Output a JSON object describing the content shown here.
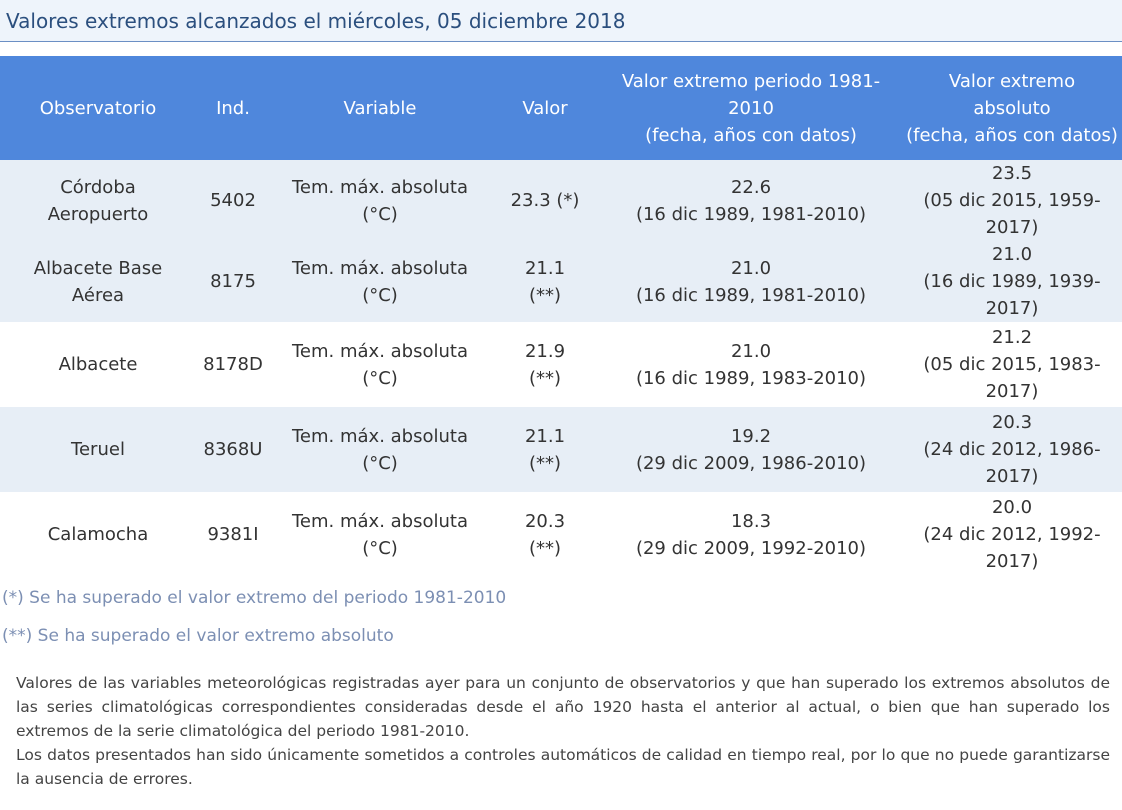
{
  "header": {
    "title": "Valores extremos alcanzados el miércoles, 05 diciembre 2018"
  },
  "table": {
    "columns": [
      "Observatorio",
      "Ind.",
      "Variable",
      "Valor",
      "Valor extremo periodo 1981-\n2010\n(fecha, años con datos)",
      "Valor extremo\nabsoluto\n(fecha, años con datos)"
    ],
    "rows": [
      {
        "station": "Córdoba\nAeropuerto",
        "ind": "5402",
        "variable": "Tem. máx. absoluta\n(°C)",
        "value": "23.3 (*)",
        "period_extreme": "22.6\n(16 dic 1989, 1981-2010)",
        "absolute_extreme": "23.5\n(05 dic 2015, 1959-\n2017)"
      },
      {
        "station": "Albacete Base\nAérea",
        "ind": "8175",
        "variable": "Tem. máx. absoluta\n(°C)",
        "value": "21.1\n(**)",
        "period_extreme": "21.0\n(16 dic 1989, 1981-2010)",
        "absolute_extreme": "21.0\n(16 dic 1989, 1939-\n2017)"
      },
      {
        "station": "Albacete",
        "ind": "8178D",
        "variable": "Tem. máx. absoluta\n(°C)",
        "value": "21.9\n(**)",
        "period_extreme": "21.0\n(16 dic 1989, 1983-2010)",
        "absolute_extreme": "21.2\n(05 dic 2015, 1983-\n2017)"
      },
      {
        "station": "Teruel",
        "ind": "8368U",
        "variable": "Tem. máx. absoluta\n(°C)",
        "value": "21.1\n(**)",
        "period_extreme": "19.2\n(29 dic 2009, 1986-2010)",
        "absolute_extreme": "20.3\n(24 dic 2012, 1986-\n2017)"
      },
      {
        "station": "Calamocha",
        "ind": "9381I",
        "variable": "Tem. máx. absoluta\n(°C)",
        "value": "20.3\n(**)",
        "period_extreme": "18.3\n(29 dic 2009, 1992-2010)",
        "absolute_extreme": "20.0\n(24 dic 2012, 1992-\n2017)"
      }
    ]
  },
  "notes": {
    "n1": "(*) Se ha superado el valor extremo del periodo 1981-2010",
    "n2": "(**) Se ha superado el valor extremo absoluto"
  },
  "description": {
    "p1": "Valores de las variables meteorológicas registradas ayer para un conjunto de observatorios y que han superado los extremos absolutos de las series climatológicas correspondientes consideradas desde el año 1920 hasta el anterior al actual, o bien que han superado los extremos de la serie climatológica del periodo 1981-2010.",
    "p2": "Los datos presentados han sido únicamente sometidos a controles automáticos de calidad en tiempo real, por lo que no puede garantizarse la ausencia de errores."
  },
  "colors": {
    "header_bg": "#4f87dc",
    "row_shade": "#e7eef6",
    "title_text": "#2b4f7e",
    "note_text": "#7c8fb3"
  }
}
